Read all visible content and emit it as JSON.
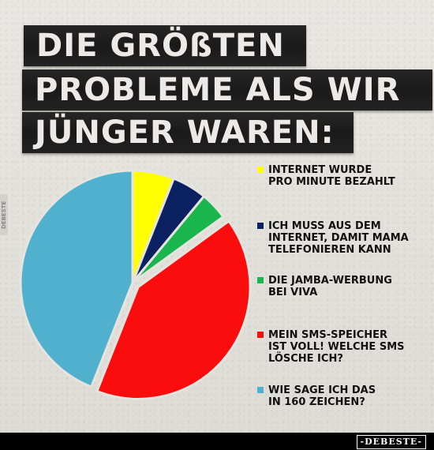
{
  "title": {
    "lines": [
      "DIE GRÖßTEN",
      "PROBLEME ALS WIR",
      "JÜNGER WAREN:"
    ]
  },
  "chart_data": {
    "type": "pie",
    "start_angle_deg": 0,
    "slices": [
      {
        "label": "INTERNET WURDE PRO MINUTE BEZAHLT",
        "value": 6,
        "color": "#ffff00"
      },
      {
        "label": "ICH MUSS AUS DEM INTERNET, DAMIT MAMA TELEFONIEREN KANN",
        "value": 5,
        "color": "#0a2060"
      },
      {
        "label": "DIE JAMBA-WERBUNG BEI VIVA",
        "value": 4,
        "color": "#19b54d"
      },
      {
        "label": "MEIN SMS-SPEICHER IST VOLL! WELCHE SMS LÖSCHE ICH?",
        "value": 41,
        "color": "#fb0d0d"
      },
      {
        "label": "WIE SAGE ICH DAS IN 160 ZEICHEN?",
        "value": 44,
        "color": "#52b0cf"
      }
    ],
    "exploded_slice": "MEIN SMS-SPEICHER IST VOLL! WELCHE SMS LÖSCHE ICH?",
    "legend_position": "right"
  },
  "legend": [
    {
      "line1": "INTERNET WURDE",
      "line2": "PRO MINUTE BEZAHLT",
      "line3": ""
    },
    {
      "line1": "ICH MUSS AUS DEM",
      "line2": "INTERNET, DAMIT MAMA",
      "line3": "TELEFONIEREN KANN"
    },
    {
      "line1": "DIE JAMBA-WERBUNG",
      "line2": "BEI VIVA",
      "line3": ""
    },
    {
      "line1": "MEIN SMS-SPEICHER",
      "line2": "IST VOLL! WELCHE SMS",
      "line3": "LÖSCHE ICH?"
    },
    {
      "line1": "WIE SAGE ICH DAS",
      "line2": "IN 160 ZEICHEN?",
      "line3": ""
    }
  ],
  "side_mark": "DEBESTE",
  "footer": {
    "brand": "-DEBESTE-"
  }
}
